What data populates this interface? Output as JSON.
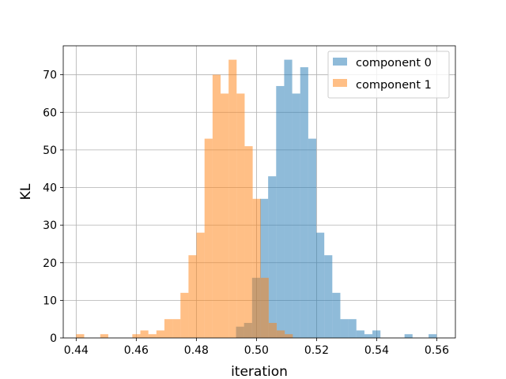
{
  "chart_data": {
    "type": "bar",
    "subtype": "histogram",
    "xlabel": "iteration",
    "ylabel": "KL",
    "xlim": [
      0.4357,
      0.5662
    ],
    "ylim": [
      0,
      77.7
    ],
    "grid": true,
    "legend_position": "top-right",
    "xticks": [
      0.44,
      0.46,
      0.48,
      0.5,
      0.52,
      0.54,
      0.56
    ],
    "xtick_labels": [
      "0.44",
      "0.46",
      "0.48",
      "0.50",
      "0.52",
      "0.54",
      "0.56"
    ],
    "yticks": [
      0,
      10,
      20,
      30,
      40,
      50,
      60,
      70
    ],
    "ytick_labels": [
      "0",
      "10",
      "20",
      "30",
      "40",
      "50",
      "60",
      "70"
    ],
    "series": [
      {
        "name": "component 0",
        "color": "#1f77b4",
        "opacity": 0.5,
        "bin_start": 0.4932,
        "bin_width": 0.00267,
        "counts": [
          3,
          4,
          16,
          37,
          43,
          67,
          74,
          65,
          72,
          53,
          28,
          22,
          12,
          5,
          5,
          2,
          1,
          2,
          0,
          0,
          0,
          1,
          0,
          0,
          1
        ]
      },
      {
        "name": "component 1",
        "color": "#ff7f0e",
        "opacity": 0.5,
        "bin_start": 0.44,
        "bin_width": 0.00267,
        "counts": [
          1,
          0,
          0,
          1,
          0,
          0,
          0,
          1,
          2,
          1,
          2,
          5,
          5,
          12,
          22,
          28,
          53,
          70,
          65,
          74,
          65,
          51,
          37,
          16,
          4,
          2,
          1
        ]
      }
    ]
  }
}
